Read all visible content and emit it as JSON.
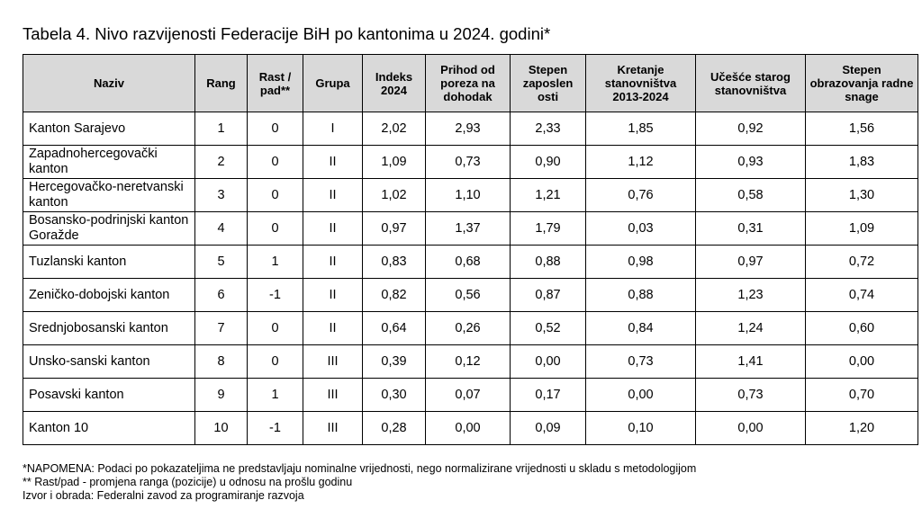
{
  "title": "Tabela 4. Nivo razvijenosti Federacije BiH po kantonima u 2024. godini*",
  "columns": [
    "Naziv",
    "Rang",
    "Rast / pad**",
    "Grupa",
    "Indeks 2024",
    "Prihod od poreza na dohodak",
    "Stepen zaposlen osti",
    "Kretanje stanovništva 2013-2024",
    "Učešće starog stanovništva",
    "Stepen obrazovanja radne snage"
  ],
  "rows": [
    [
      "Kanton Sarajevo",
      "1",
      "0",
      "I",
      "2,02",
      "2,93",
      "2,33",
      "1,85",
      "0,92",
      "1,56"
    ],
    [
      "Zapadnohercegovački kanton",
      "2",
      "0",
      "II",
      "1,09",
      "0,73",
      "0,90",
      "1,12",
      "0,93",
      "1,83"
    ],
    [
      "Hercegovačko-neretvanski kanton",
      "3",
      "0",
      "II",
      "1,02",
      "1,10",
      "1,21",
      "0,76",
      "0,58",
      "1,30"
    ],
    [
      "Bosansko-podrinjski kanton Goražde",
      "4",
      "0",
      "II",
      "0,97",
      "1,37",
      "1,79",
      "0,03",
      "0,31",
      "1,09"
    ],
    [
      "Tuzlanski kanton",
      "5",
      "1",
      "II",
      "0,83",
      "0,68",
      "0,88",
      "0,98",
      "0,97",
      "0,72"
    ],
    [
      "Zeničko-dobojski kanton",
      "6",
      "-1",
      "II",
      "0,82",
      "0,56",
      "0,87",
      "0,88",
      "1,23",
      "0,74"
    ],
    [
      "Srednjobosanski kanton",
      "7",
      "0",
      "II",
      "0,64",
      "0,26",
      "0,52",
      "0,84",
      "1,24",
      "0,60"
    ],
    [
      "Unsko-sanski kanton",
      "8",
      "0",
      "III",
      "0,39",
      "0,12",
      "0,00",
      "0,73",
      "1,41",
      "0,00"
    ],
    [
      "Posavski kanton",
      "9",
      "1",
      "III",
      "0,30",
      "0,07",
      "0,17",
      "0,00",
      "0,73",
      "0,70"
    ],
    [
      "Kanton 10",
      "10",
      "-1",
      "III",
      "0,28",
      "0,00",
      "0,09",
      "0,10",
      "0,00",
      "1,20"
    ]
  ],
  "notes": [
    "*NAPOMENA: Podaci po pokazateljima ne predstavljaju nominalne vrijednosti, nego normalizirane vrijednosti u skladu s metodologijom",
    "** Rast/pad - promjena ranga (pozicije) u odnosu na prošlu godinu",
    "Izvor i obrada: Federalni zavod za programiranje razvoja"
  ],
  "colors": {
    "header_background": "#d9d9d9",
    "border": "#000000",
    "text": "#000000"
  }
}
